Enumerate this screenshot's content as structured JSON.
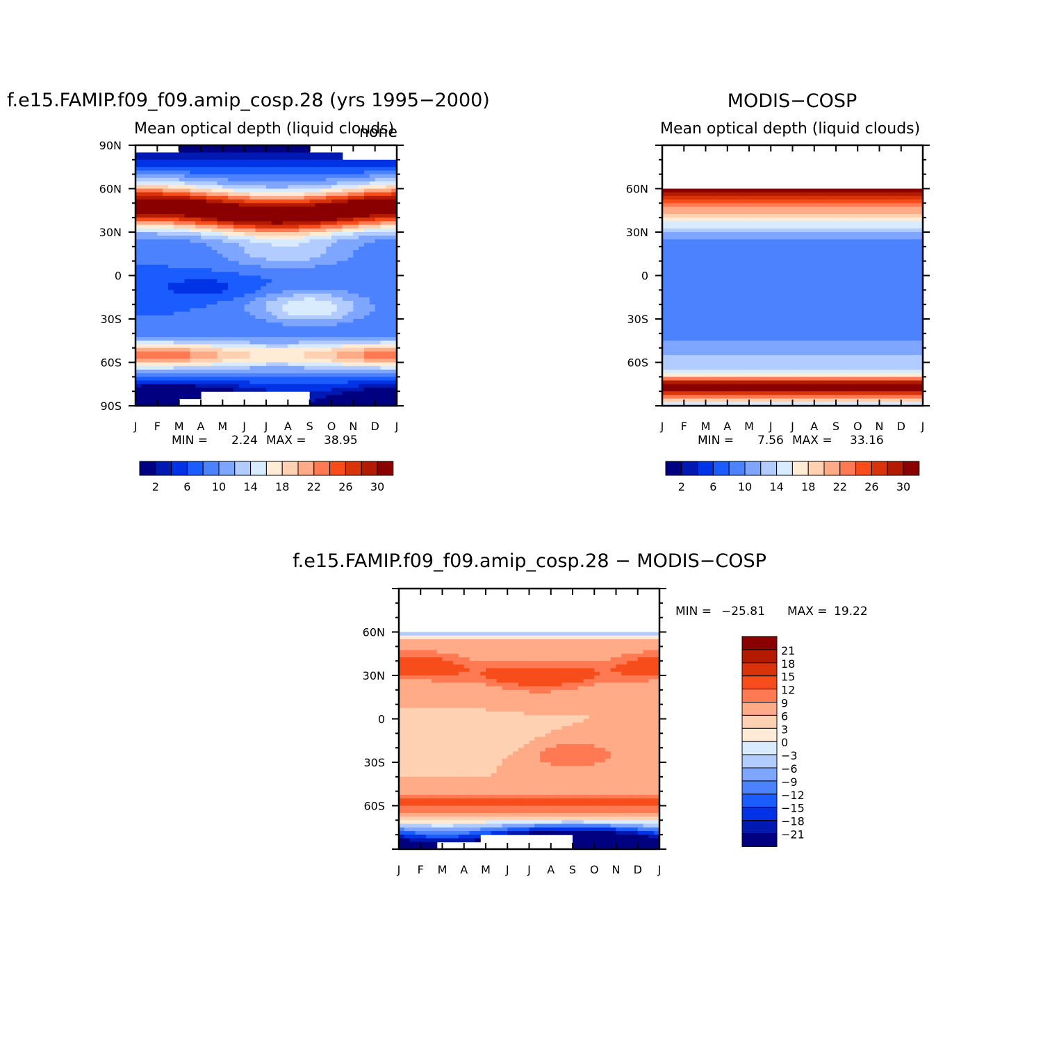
{
  "chart_data": [
    {
      "type": "heatmap",
      "title": "f.e15.FAMIP.f09_f09.amip_cosp.28 (yrs 1995−2000)",
      "subtitle": "Mean optical depth (liquid clouds)",
      "right_label": "none",
      "x_tick_labels": [
        "J",
        "F",
        "M",
        "A",
        "M",
        "J",
        "J",
        "A",
        "S",
        "O",
        "N",
        "D",
        "J"
      ],
      "y_tick_labels": [
        "90N",
        "60N",
        "30N",
        "0",
        "30S",
        "60S",
        "90S"
      ],
      "ylim": [
        -90,
        90
      ],
      "stats": {
        "min_label": "MIN =",
        "min": "2.24",
        "max_label": "MAX =",
        "max": "38.95"
      },
      "colorbar": {
        "colors": [
          "#000080",
          "#0019b3",
          "#0033e6",
          "#1a5cff",
          "#4d82ff",
          "#7ea6ff",
          "#b3ccff",
          "#d9ebff",
          "#ffebd6",
          "#ffd1b3",
          "#ffab87",
          "#ff7a52",
          "#f74d1a",
          "#d9330a",
          "#b31a00",
          "#8a0000"
        ],
        "levels": [
          0,
          2,
          4,
          6,
          8,
          10,
          12,
          14,
          16,
          18,
          20,
          22,
          24,
          26,
          28,
          30,
          32
        ],
        "tick_labels": [
          "2",
          "6",
          "10",
          "14",
          "18",
          "22",
          "26",
          "30"
        ]
      }
    },
    {
      "type": "heatmap",
      "title": "MODIS−COSP",
      "subtitle": "Mean optical depth (liquid clouds)",
      "x_tick_labels": [
        "J",
        "F",
        "M",
        "A",
        "M",
        "J",
        "J",
        "A",
        "S",
        "O",
        "N",
        "D",
        "J"
      ],
      "y_tick_labels": [
        "60N",
        "30N",
        "0",
        "30S",
        "60S"
      ],
      "ylim": [
        -90,
        90
      ],
      "stats": {
        "min_label": "MIN =",
        "min": "7.56",
        "max_label": "MAX =",
        "max": "33.16"
      },
      "colorbar": {
        "colors": [
          "#000080",
          "#0019b3",
          "#0033e6",
          "#1a5cff",
          "#4d82ff",
          "#7ea6ff",
          "#b3ccff",
          "#d9ebff",
          "#ffebd6",
          "#ffd1b3",
          "#ffab87",
          "#ff7a52",
          "#f74d1a",
          "#d9330a",
          "#b31a00",
          "#8a0000"
        ],
        "levels": [
          0,
          2,
          4,
          6,
          8,
          10,
          12,
          14,
          16,
          18,
          20,
          22,
          24,
          26,
          28,
          30,
          32
        ],
        "tick_labels": [
          "2",
          "6",
          "10",
          "14",
          "18",
          "22",
          "26",
          "30"
        ]
      }
    },
    {
      "type": "heatmap",
      "title": "f.e15.FAMIP.f09_f09.amip_cosp.28 − MODIS−COSP",
      "x_tick_labels": [
        "J",
        "F",
        "M",
        "A",
        "M",
        "J",
        "J",
        "A",
        "S",
        "O",
        "N",
        "D",
        "J"
      ],
      "y_tick_labels": [
        "60N",
        "30N",
        "0",
        "30S",
        "60S"
      ],
      "ylim": [
        -90,
        90
      ],
      "stats": {
        "min_label": "MIN =",
        "min": "−25.81",
        "max_label": "MAX =",
        "max": "19.22"
      },
      "colorbar": {
        "colors": [
          "#8a0000",
          "#b31a00",
          "#d9330a",
          "#f74d1a",
          "#ff7a52",
          "#ffab87",
          "#ffd1b3",
          "#ffebd6",
          "#d9ebff",
          "#b3ccff",
          "#7ea6ff",
          "#4d82ff",
          "#1a5cff",
          "#0033e6",
          "#0019b3",
          "#000080"
        ],
        "tick_labels": [
          "21",
          "18",
          "15",
          "12",
          "9",
          "6",
          "3",
          "0",
          "−3",
          "−6",
          "−9",
          "−12",
          "−15",
          "−18",
          "−21"
        ]
      }
    }
  ]
}
